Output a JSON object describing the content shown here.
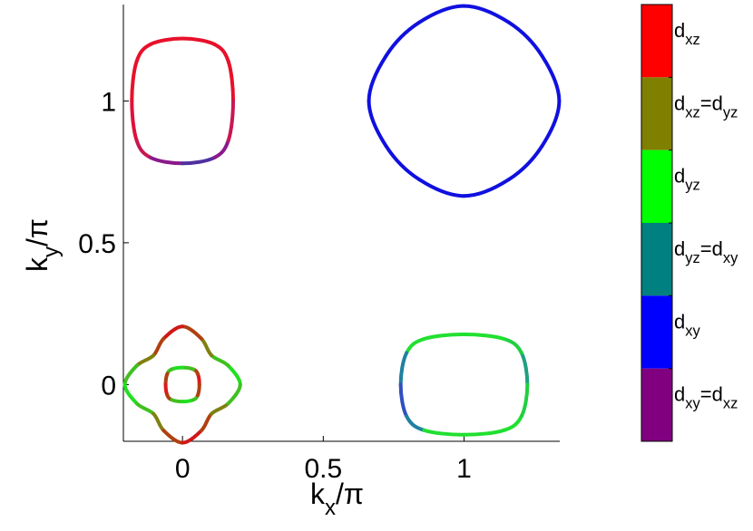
{
  "chart_data": {
    "type": "contour",
    "xlim": [
      -0.21,
      1.34
    ],
    "ylim": [
      -0.2,
      1.34
    ],
    "xticks": [
      0,
      0.5,
      1
    ],
    "yticks": [
      0,
      0.5,
      1
    ],
    "xlabel": [
      "k",
      "x",
      "/π"
    ],
    "ylabel": [
      "k",
      "y",
      "/π"
    ],
    "contours": [
      {
        "x": [
          0.18,
          0.163,
          0.113,
          0,
          -0.113,
          -0.163,
          -0.18,
          -0.163,
          -0.113,
          0,
          0.113,
          0.163
        ],
        "y": [
          1,
          1.139,
          1.2,
          1.22,
          1.2,
          1.139,
          1,
          0.861,
          0.8,
          0.78,
          0.8,
          0.861
        ],
        "colors": [
          "#e8102a",
          "#e8102a",
          "#e8102a",
          "#e8102a",
          "#e8102a",
          "#e8102a",
          "#e0103a",
          "#c81850",
          "#8a1a8a",
          "#5030a0",
          "#8a1a8a",
          "#c81850"
        ]
      },
      {
        "x": [
          1.338,
          1.277,
          1.159,
          1,
          0.841,
          0.723,
          0.662,
          0.723,
          0.841,
          1,
          1.159,
          1.277
        ],
        "y": [
          1,
          1.159,
          1.277,
          1.335,
          1.277,
          1.159,
          1,
          0.841,
          0.723,
          0.665,
          0.723,
          0.841
        ],
        "colors": [
          "#1010e0",
          "#1010e0",
          "#1010e0",
          "#1010e0",
          "#1010e0",
          "#1010e0",
          "#1010e0",
          "#1010e0",
          "#1010e0",
          "#1010e0",
          "#1010e0",
          "#1010e0"
        ]
      },
      {
        "x": [
          1.225,
          1.204,
          1.142,
          1,
          0.858,
          0.796,
          0.775,
          0.796,
          0.858,
          1,
          1.142,
          1.204
        ],
        "y": [
          0,
          0.112,
          0.161,
          0.177,
          0.161,
          0.112,
          0,
          -0.112,
          -0.161,
          -0.177,
          -0.161,
          -0.112
        ],
        "colors": [
          "#20a080",
          "#20d040",
          "#20e030",
          "#20e030",
          "#20e030",
          "#2080a0",
          "#3050c0",
          "#2080a0",
          "#20e030",
          "#20e030",
          "#20e030",
          "#20d040"
        ]
      },
      {
        "x": [
          0.205,
          0.162,
          0.103,
          0.067,
          0,
          -0.067,
          -0.103,
          -0.162,
          -0.205,
          -0.162,
          -0.103,
          -0.067,
          0,
          0.067,
          0.103,
          0.162
        ],
        "y": [
          0,
          0.067,
          0.103,
          0.162,
          0.205,
          0.162,
          0.103,
          0.067,
          0,
          -0.067,
          -0.103,
          -0.162,
          -0.205,
          -0.162,
          -0.103,
          -0.067
        ],
        "colors": [
          "#20e020",
          "#40c020",
          "#808010",
          "#b04010",
          "#d01818",
          "#b04010",
          "#808010",
          "#40c020",
          "#20e020",
          "#40c020",
          "#808010",
          "#b04010",
          "#d01818",
          "#b04010",
          "#808010",
          "#40c020"
        ]
      },
      {
        "x": [
          0.06,
          0.054,
          0.038,
          0,
          -0.038,
          -0.054,
          -0.06,
          -0.054,
          -0.038,
          0,
          0.038,
          0.054
        ],
        "y": [
          0,
          0.038,
          0.054,
          0.06,
          0.054,
          0.038,
          0,
          -0.038,
          -0.054,
          -0.06,
          -0.054,
          -0.038
        ],
        "colors": [
          "#e01818",
          "#b04010",
          "#40c020",
          "#20e020",
          "#40c020",
          "#b04010",
          "#e01818",
          "#b04010",
          "#40c020",
          "#20e020",
          "#40c020",
          "#b04010"
        ]
      }
    ],
    "colorbar": [
      {
        "label": [
          "d",
          "xz"
        ],
        "color": "#ff0000"
      },
      {
        "label": [
          "d",
          "xz",
          "=d",
          "yz"
        ],
        "color": "#808000"
      },
      {
        "label": [
          "d",
          "yz"
        ],
        "color": "#00ff00"
      },
      {
        "label": [
          "d",
          "yz",
          "=d",
          "xy"
        ],
        "color": "#008080"
      },
      {
        "label": [
          "d",
          "xy"
        ],
        "color": "#0000ff"
      },
      {
        "label": [
          "d",
          "xy",
          "=d",
          "xz"
        ],
        "color": "#800080"
      }
    ]
  }
}
